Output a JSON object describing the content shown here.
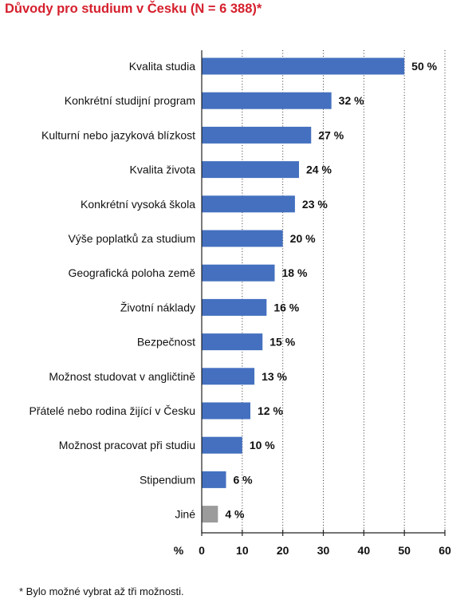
{
  "title": "Důvody pro studium v Česku (N = 6 388)*",
  "footnote": "* Bylo možné vybrat až tři možnosti.",
  "colors": {
    "title": "#d5202d",
    "bar": "#4470bf",
    "bar_other": "#9b9b9b",
    "text": "#111111"
  },
  "chart_data": {
    "type": "bar",
    "orientation": "horizontal",
    "title": "Důvody pro studium v Česku (N = 6 388)*",
    "xlabel": "%",
    "ylabel": "",
    "xlim": [
      0,
      60
    ],
    "xticks": [
      0,
      10,
      20,
      30,
      40,
      50,
      60
    ],
    "grid": true,
    "value_suffix": " %",
    "categories": [
      "Kvalita studia",
      "Konkrétní studijní program",
      "Kulturní nebo jazyková blízkost",
      "Kvalita života",
      "Konkrétní vysoká škola",
      "Výše poplatků za studium",
      "Geografická poloha země",
      "Životní náklady",
      "Bezpečnost",
      "Možnost studovat v angličtině",
      "Přátelé nebo rodina žijící v Česku",
      "Možnost pracovat při studiu",
      "Stipendium",
      "Jiné"
    ],
    "values": [
      50,
      32,
      27,
      24,
      23,
      20,
      18,
      16,
      15,
      13,
      12,
      10,
      6,
      4
    ],
    "highlight_colors": {
      "Jiné": "#9b9b9b"
    }
  }
}
